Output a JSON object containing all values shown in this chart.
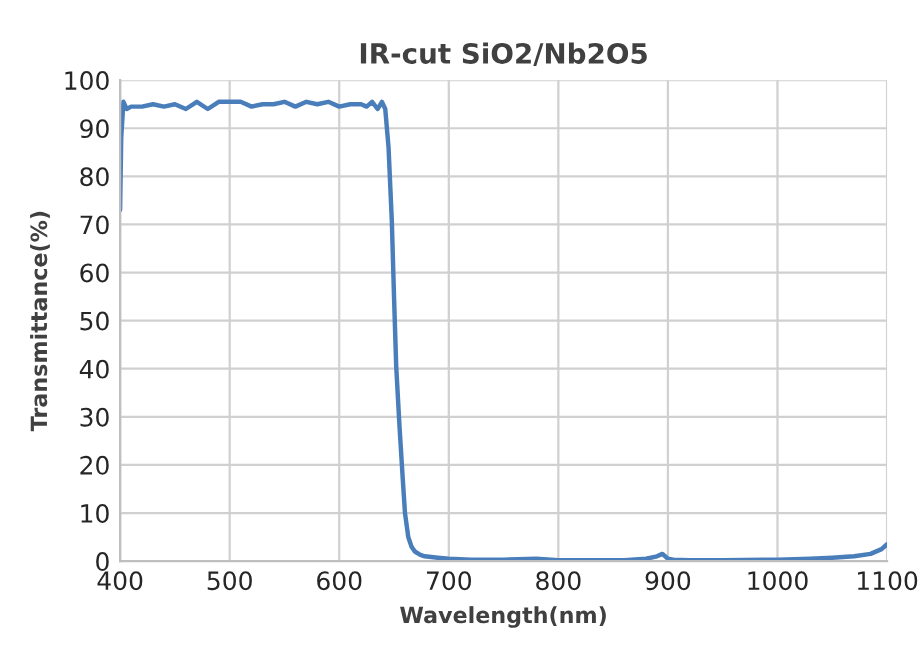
{
  "chart_data": {
    "type": "line",
    "title": "IR-cut SiO2/Nb2O5",
    "xlabel": "Wavelength(nm)",
    "ylabel": "Transmittance(%)",
    "series": [
      {
        "color": "#4a7ebb",
        "x": [
          400,
          401,
          403,
          406,
          410,
          420,
          430,
          440,
          450,
          460,
          470,
          480,
          490,
          500,
          510,
          520,
          530,
          540,
          550,
          560,
          570,
          580,
          590,
          600,
          610,
          620,
          625,
          630,
          635,
          639,
          642,
          645,
          648,
          650,
          652,
          655,
          658,
          660,
          663,
          666,
          669,
          674,
          678,
          690,
          700,
          720,
          750,
          780,
          800,
          830,
          860,
          880,
          890,
          895,
          900,
          905,
          920,
          950,
          1000,
          1030,
          1050,
          1070,
          1085,
          1095,
          1100
        ],
        "values": [
          73,
          88,
          95.5,
          94,
          94.5,
          94.5,
          95,
          94.5,
          95,
          94,
          95.5,
          94,
          95.5,
          95.5,
          95.5,
          94.5,
          95,
          95,
          95.5,
          94.5,
          95.5,
          95,
          95.5,
          94.5,
          95,
          95,
          94.5,
          95.5,
          94,
          95.5,
          94,
          86,
          70.7,
          55,
          40.5,
          28,
          17,
          10,
          5,
          3,
          2,
          1.3,
          1,
          0.7,
          0.5,
          0.3,
          0.3,
          0.5,
          0.2,
          0.2,
          0.2,
          0.5,
          1,
          1.5,
          0.5,
          0.3,
          0.2,
          0.2,
          0.3,
          0.5,
          0.7,
          1,
          1.5,
          2.5,
          3.5
        ]
      }
    ],
    "xlim": [
      400,
      1100
    ],
    "xticks": [
      400,
      500,
      600,
      700,
      800,
      900,
      1000,
      1100
    ],
    "ylim": [
      0,
      100
    ],
    "yticks": [
      0,
      10,
      20,
      30,
      40,
      50,
      60,
      70,
      80,
      90,
      100
    ],
    "grid": true
  }
}
